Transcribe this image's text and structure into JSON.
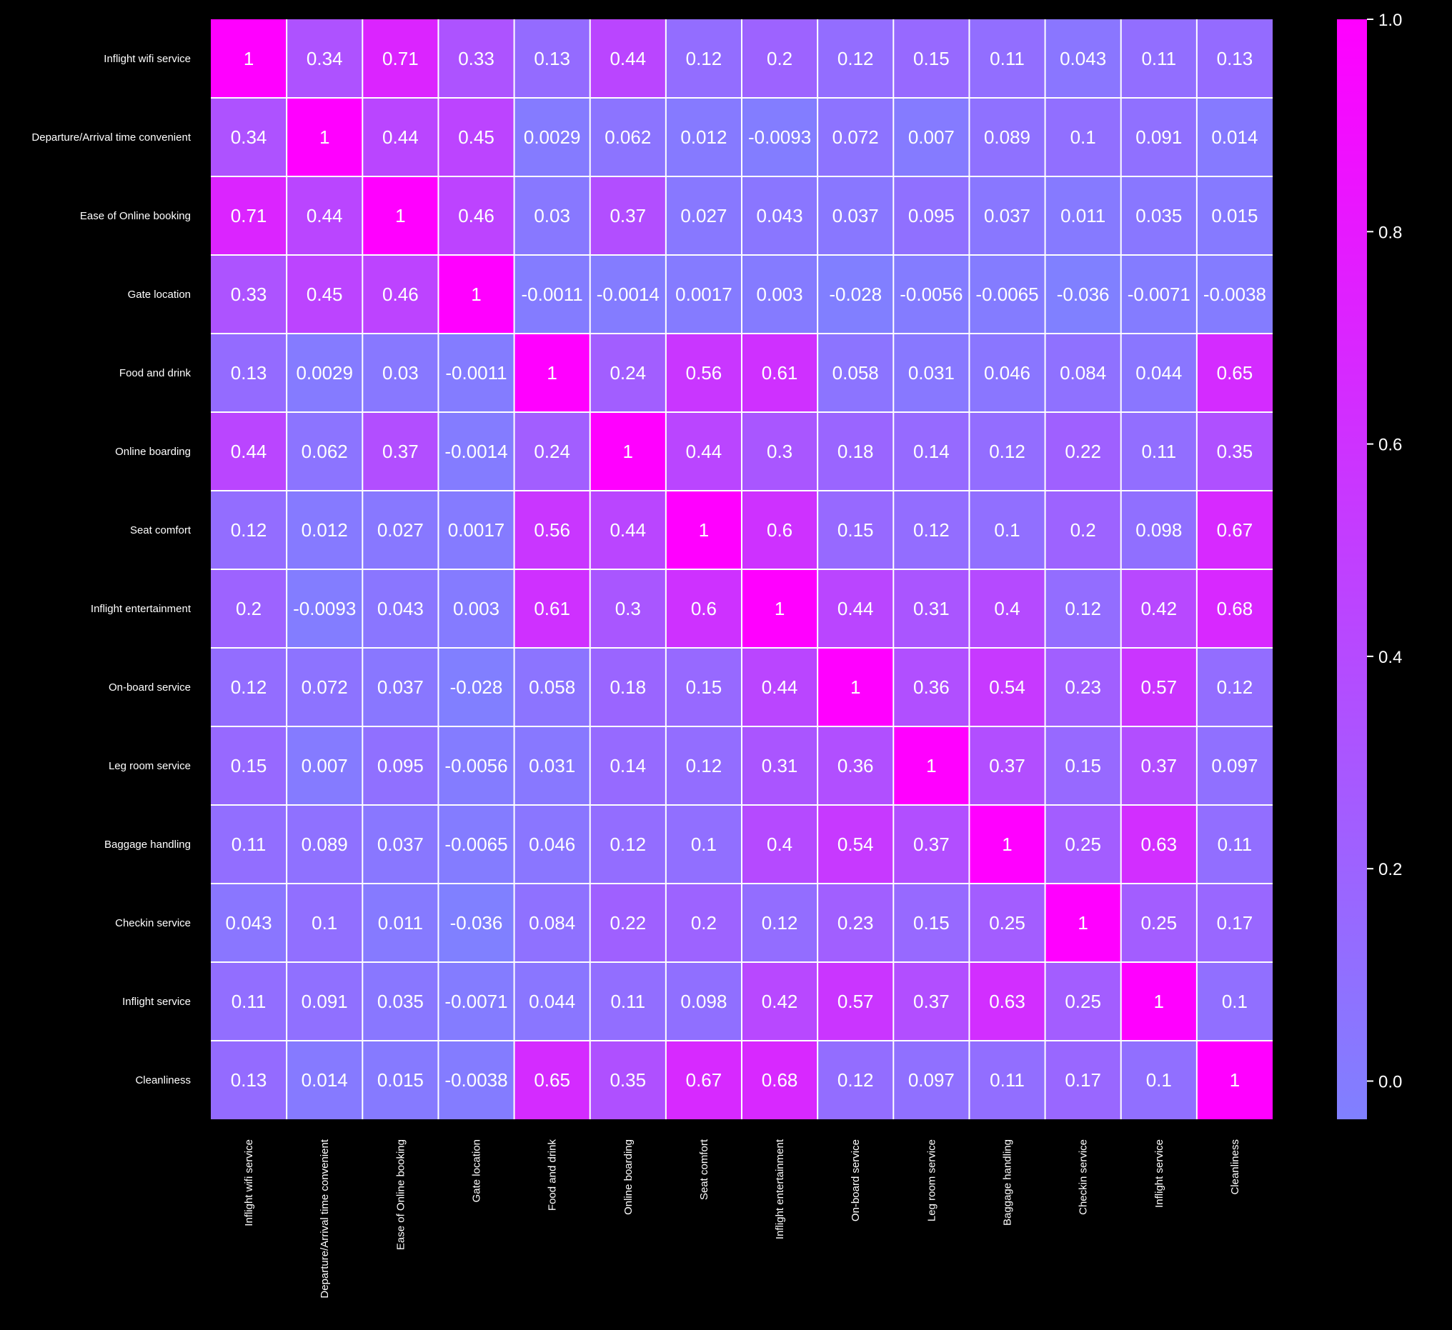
{
  "chart_data": {
    "type": "heatmap",
    "title": "",
    "xlabel": "",
    "ylabel": "",
    "labels": [
      "Inflight wifi service",
      "Departure/Arrival time convenient",
      "Ease of Online booking",
      "Gate location",
      "Food and drink",
      "Online boarding",
      "Seat comfort",
      "Inflight entertainment",
      "On-board service",
      "Leg room service",
      "Baggage handling",
      "Checkin service",
      "Inflight service",
      "Cleanliness"
    ],
    "matrix": [
      [
        1,
        0.34,
        0.71,
        0.33,
        0.13,
        0.44,
        0.12,
        0.2,
        0.12,
        0.15,
        0.11,
        0.043,
        0.11,
        0.13
      ],
      [
        0.34,
        1,
        0.44,
        0.45,
        0.0029,
        0.062,
        0.012,
        -0.0093,
        0.072,
        0.007,
        0.089,
        0.1,
        0.091,
        0.014
      ],
      [
        0.71,
        0.44,
        1,
        0.46,
        0.03,
        0.37,
        0.027,
        0.043,
        0.037,
        0.095,
        0.037,
        0.011,
        0.035,
        0.015
      ],
      [
        0.33,
        0.45,
        0.46,
        1,
        -0.0011,
        -0.0014,
        0.0017,
        0.003,
        -0.028,
        -0.0056,
        -0.0065,
        -0.036,
        -0.0071,
        -0.0038
      ],
      [
        0.13,
        0.0029,
        0.03,
        -0.0011,
        1,
        0.24,
        0.56,
        0.61,
        0.058,
        0.031,
        0.046,
        0.084,
        0.044,
        0.65
      ],
      [
        0.44,
        0.062,
        0.37,
        -0.0014,
        0.24,
        1,
        0.44,
        0.3,
        0.18,
        0.14,
        0.12,
        0.22,
        0.11,
        0.35
      ],
      [
        0.12,
        0.012,
        0.027,
        0.0017,
        0.56,
        0.44,
        1,
        0.6,
        0.15,
        0.12,
        0.1,
        0.2,
        0.098,
        0.67
      ],
      [
        0.2,
        -0.0093,
        0.043,
        0.003,
        0.61,
        0.3,
        0.6,
        1,
        0.44,
        0.31,
        0.4,
        0.12,
        0.42,
        0.68
      ],
      [
        0.12,
        0.072,
        0.037,
        -0.028,
        0.058,
        0.18,
        0.15,
        0.44,
        1,
        0.36,
        0.54,
        0.23,
        0.57,
        0.12
      ],
      [
        0.15,
        0.007,
        0.095,
        -0.0056,
        0.031,
        0.14,
        0.12,
        0.31,
        0.36,
        1,
        0.37,
        0.15,
        0.37,
        0.097
      ],
      [
        0.11,
        0.089,
        0.037,
        -0.0065,
        0.046,
        0.12,
        0.1,
        0.4,
        0.54,
        0.37,
        1,
        0.25,
        0.63,
        0.11
      ],
      [
        0.043,
        0.1,
        0.011,
        -0.036,
        0.084,
        0.22,
        0.2,
        0.12,
        0.23,
        0.15,
        0.25,
        1,
        0.25,
        0.17
      ],
      [
        0.11,
        0.091,
        0.035,
        -0.0071,
        0.044,
        0.11,
        0.098,
        0.42,
        0.57,
        0.37,
        0.63,
        0.25,
        1,
        0.1
      ],
      [
        0.13,
        0.014,
        0.015,
        -0.0038,
        0.65,
        0.35,
        0.67,
        0.68,
        0.12,
        0.097,
        0.11,
        0.17,
        0.1,
        1
      ]
    ],
    "vmin": -0.036,
    "vmax": 1,
    "colormap": {
      "low": "#8080ff",
      "high": "#ff00ff"
    },
    "colorbar_ticks": [
      0.0,
      0.2,
      0.4,
      0.6,
      0.8,
      1.0
    ],
    "colorbar_tick_labels": [
      "0.0",
      "0.2",
      "0.4",
      "0.6",
      "0.8",
      "1.0"
    ],
    "background": "#000000",
    "grid_line_color": "#ffffff"
  }
}
